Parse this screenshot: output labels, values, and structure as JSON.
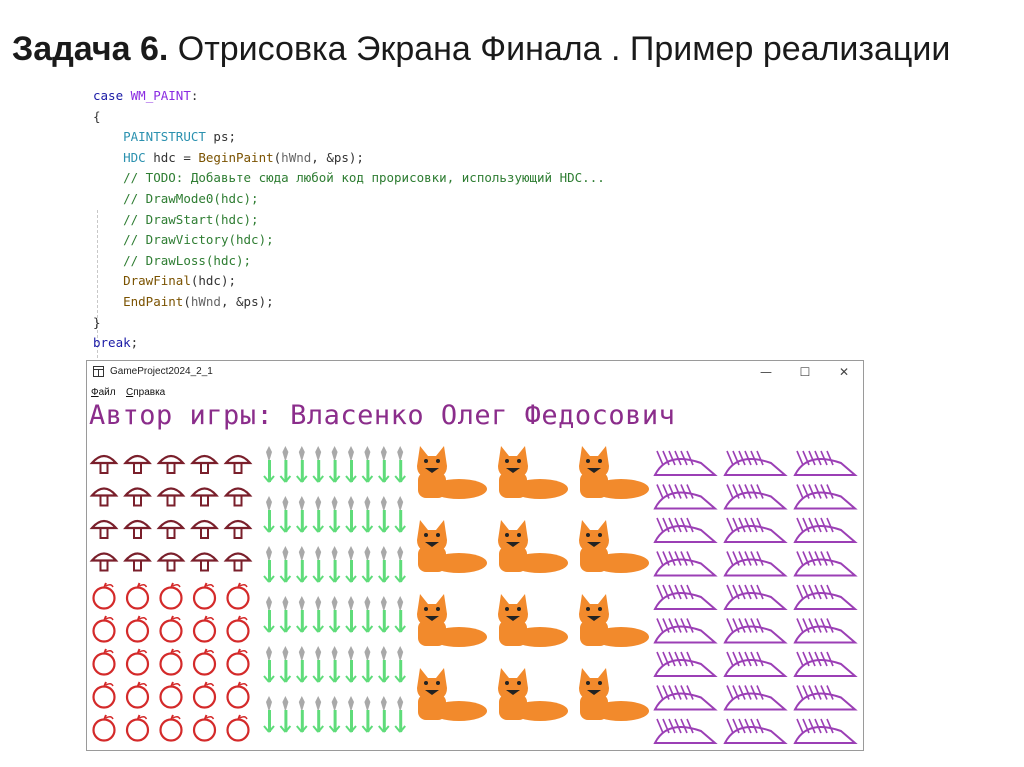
{
  "slide": {
    "title_bold": "Задача 6.",
    "title_rest": " Отрисовка Экрана Финала . Пример реализации"
  },
  "code": [
    [
      {
        "c": "kw",
        "t": "case "
      },
      {
        "c": "mac",
        "t": "WM_PAINT"
      },
      {
        "c": "plain",
        "t": ":"
      }
    ],
    [
      {
        "c": "plain",
        "t": "{"
      }
    ],
    [
      {
        "c": "plain",
        "t": "    "
      },
      {
        "c": "ty",
        "t": "PAINTSTRUCT"
      },
      {
        "c": "plain",
        "t": " ps;"
      }
    ],
    [
      {
        "c": "plain",
        "t": "    "
      },
      {
        "c": "ty",
        "t": "HDC"
      },
      {
        "c": "plain",
        "t": " hdc = "
      },
      {
        "c": "fn",
        "t": "BeginPaint"
      },
      {
        "c": "plain",
        "t": "("
      },
      {
        "c": "par",
        "t": "hWnd"
      },
      {
        "c": "plain",
        "t": ", &ps);"
      }
    ],
    [
      {
        "c": "plain",
        "t": "    "
      },
      {
        "c": "cm",
        "t": "// TODO: Добавьте сюда любой код прорисовки, использующий HDC..."
      }
    ],
    [
      {
        "c": "plain",
        "t": "    "
      },
      {
        "c": "cm",
        "t": "// DrawMode0(hdc);"
      }
    ],
    [
      {
        "c": "plain",
        "t": "    "
      },
      {
        "c": "cm",
        "t": "// DrawStart(hdc);"
      }
    ],
    [
      {
        "c": "plain",
        "t": "    "
      },
      {
        "c": "cm",
        "t": "// DrawVictory(hdc);"
      }
    ],
    [
      {
        "c": "plain",
        "t": "    "
      },
      {
        "c": "cm",
        "t": "// DrawLoss(hdc);"
      }
    ],
    [
      {
        "c": "plain",
        "t": "    "
      },
      {
        "c": "fn",
        "t": "DrawFinal"
      },
      {
        "c": "plain",
        "t": "(hdc);"
      }
    ],
    [
      {
        "c": "plain",
        "t": "    "
      },
      {
        "c": "fn",
        "t": "EndPaint"
      },
      {
        "c": "plain",
        "t": "("
      },
      {
        "c": "par",
        "t": "hWnd"
      },
      {
        "c": "plain",
        "t": ", &ps);"
      }
    ],
    [
      {
        "c": "plain",
        "t": "}"
      }
    ],
    [
      {
        "c": "kw",
        "t": "break"
      },
      {
        "c": "plain",
        "t": ";"
      }
    ]
  ],
  "window": {
    "title": "GameProject2024_2_1",
    "minimize_glyph": "—",
    "maximize_glyph": "☐",
    "close_glyph": "✕",
    "menu": [
      "Файл",
      "Справка"
    ],
    "author_text": "Автор игры: Власенко Олег Федосович"
  },
  "field": {
    "icons": {
      "mushroom": "mushroom-icon",
      "apple": "apple-icon",
      "grass": "grass-icon",
      "fox": "fox-icon",
      "hedgehog": "hedgehog-icon"
    },
    "mushroom_rows": 4,
    "apple_rows": 5,
    "mushroom_cols": 5,
    "grass_rows": 6,
    "grass_cols": 9,
    "fox_rows": 4,
    "fox_cols": 3,
    "hedgehog_rows": 9,
    "hedgehog_cols": 3
  },
  "colors": {
    "mushroom": "#7a1f2b",
    "apple": "#d42a2a",
    "grass_stem": "#5fdc7a",
    "grass_tip": "#a9a9a9",
    "fox": "#f28a2c",
    "hedgehog": "#9b3fb5",
    "author_text": "#8b2d8b"
  }
}
